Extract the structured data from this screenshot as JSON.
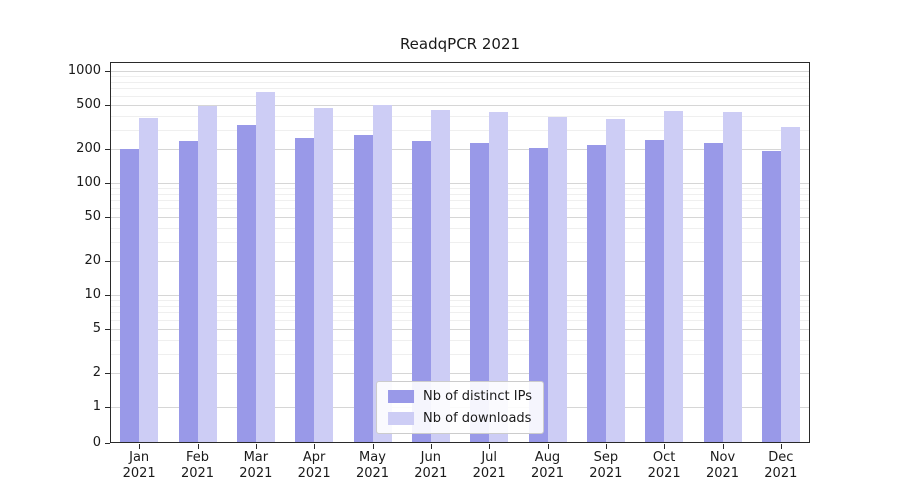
{
  "chart_data": {
    "type": "bar",
    "title": "ReadqPCR 2021",
    "scale": "symlog",
    "categories": [
      "Jan",
      "Feb",
      "Mar",
      "Apr",
      "May",
      "Jun",
      "Jul",
      "Aug",
      "Sep",
      "Oct",
      "Nov",
      "Dec"
    ],
    "year_label": "2021",
    "series": [
      {
        "name": "Nb of distinct IPs",
        "color": "#9999e8",
        "values": [
          201,
          236,
          330,
          252,
          268,
          237,
          226,
          207,
          218,
          241,
          229,
          194
        ]
      },
      {
        "name": "Nb of downloads",
        "color": "#cdcdf5",
        "values": [
          383,
          490,
          646,
          468,
          494,
          452,
          434,
          389,
          376,
          441,
          433,
          318
        ]
      }
    ],
    "yticks": [
      0,
      1,
      2,
      5,
      10,
      20,
      50,
      100,
      200,
      500,
      1000
    ],
    "ylim": [
      0,
      1000
    ],
    "grid": true,
    "legend_position": "lower center"
  },
  "colors": {
    "grid_major": "#d6d6d6",
    "grid_minor": "#efefef",
    "axis": "#2a2a2a",
    "text": "#1a1a1a",
    "background": "#ffffff"
  }
}
